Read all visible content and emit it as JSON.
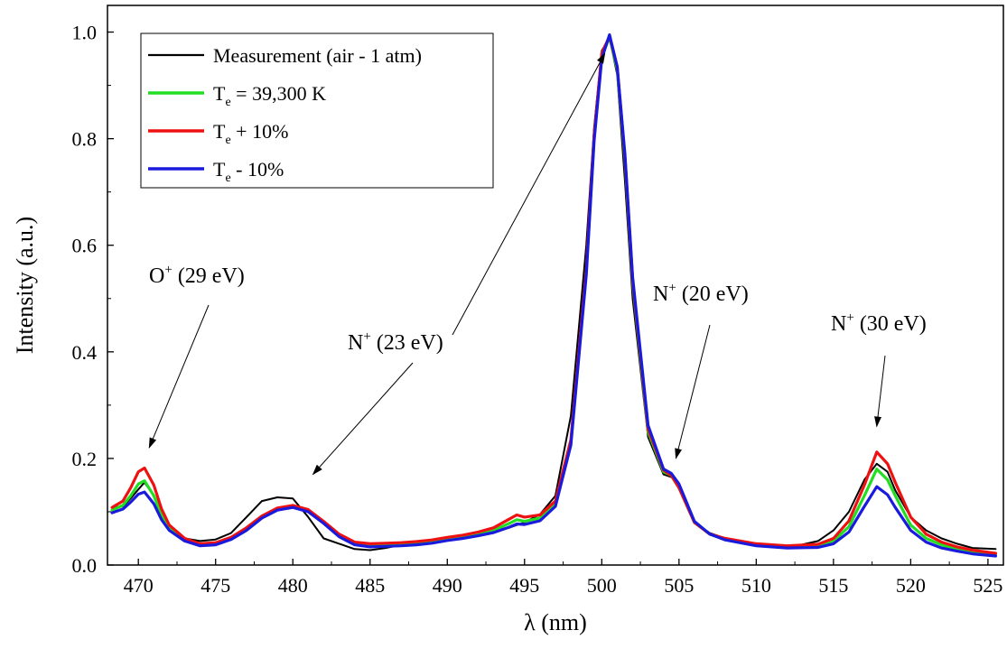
{
  "chart_data": {
    "type": "line",
    "xlabel": "λ (nm)",
    "ylabel": "Intensity (a.u.)",
    "xlim": [
      468,
      526
    ],
    "ylim": [
      0,
      1.05
    ],
    "x_ticks": [
      470,
      475,
      480,
      485,
      490,
      495,
      500,
      505,
      510,
      515,
      520,
      525
    ],
    "y_ticks": [
      0.0,
      0.2,
      0.4,
      0.6,
      0.8,
      1.0
    ],
    "x_tick_labels": [
      "470",
      "475",
      "480",
      "485",
      "490",
      "495",
      "500",
      "505",
      "510",
      "515",
      "520",
      "525"
    ],
    "y_tick_labels": [
      "0.0",
      "0.2",
      "0.4",
      "0.6",
      "0.8",
      "1.0"
    ],
    "grid": false,
    "legend_position": "top-left",
    "x": [
      468.3,
      469.0,
      469.5,
      470.0,
      470.4,
      471.0,
      471.5,
      472.0,
      473.0,
      474.0,
      475.0,
      476.0,
      477.0,
      478.0,
      479.0,
      480.0,
      481.0,
      482.0,
      483.0,
      484.0,
      485.0,
      486.0,
      487.0,
      488.0,
      489.0,
      490.0,
      491.0,
      492.0,
      493.0,
      494.0,
      494.5,
      495.0,
      496.0,
      497.0,
      498.0,
      499.0,
      499.5,
      500.0,
      500.5,
      501.0,
      501.5,
      502.0,
      503.0,
      504.0,
      504.5,
      505.0,
      506.0,
      507.0,
      508.0,
      510.0,
      512.0,
      514.0,
      515.0,
      516.0,
      517.0,
      517.8,
      518.5,
      519.0,
      520.0,
      521.0,
      522.0,
      523.0,
      524.0,
      525.5
    ],
    "series": [
      {
        "name": "Measurement (air - 1 atm)",
        "color": "#000000",
        "values": [
          0.108,
          0.11,
          0.125,
          0.142,
          0.155,
          0.13,
          0.09,
          0.07,
          0.05,
          0.045,
          0.048,
          0.06,
          0.09,
          0.12,
          0.127,
          0.125,
          0.09,
          0.05,
          0.04,
          0.03,
          0.028,
          0.032,
          0.038,
          0.04,
          0.045,
          0.05,
          0.055,
          0.058,
          0.065,
          0.07,
          0.075,
          0.08,
          0.095,
          0.13,
          0.28,
          0.6,
          0.82,
          0.965,
          0.99,
          0.92,
          0.72,
          0.5,
          0.24,
          0.17,
          0.165,
          0.15,
          0.08,
          0.06,
          0.05,
          0.038,
          0.032,
          0.045,
          0.065,
          0.1,
          0.16,
          0.19,
          0.175,
          0.14,
          0.09,
          0.065,
          0.05,
          0.04,
          0.032,
          0.03
        ]
      },
      {
        "name": "Te = 39,300 K",
        "color": "#22dd22",
        "values": [
          0.103,
          0.112,
          0.13,
          0.152,
          0.158,
          0.13,
          0.095,
          0.07,
          0.048,
          0.038,
          0.04,
          0.05,
          0.068,
          0.09,
          0.105,
          0.11,
          0.102,
          0.08,
          0.055,
          0.04,
          0.036,
          0.037,
          0.038,
          0.04,
          0.043,
          0.048,
          0.052,
          0.058,
          0.065,
          0.078,
          0.085,
          0.082,
          0.088,
          0.115,
          0.23,
          0.55,
          0.8,
          0.955,
          0.99,
          0.93,
          0.76,
          0.53,
          0.25,
          0.175,
          0.168,
          0.145,
          0.08,
          0.058,
          0.048,
          0.038,
          0.034,
          0.036,
          0.045,
          0.072,
          0.13,
          0.18,
          0.16,
          0.13,
          0.075,
          0.05,
          0.038,
          0.03,
          0.025,
          0.02
        ]
      },
      {
        "name": "Te + 10%",
        "color": "#ee1111",
        "values": [
          0.108,
          0.12,
          0.145,
          0.175,
          0.182,
          0.15,
          0.105,
          0.075,
          0.05,
          0.04,
          0.042,
          0.052,
          0.07,
          0.092,
          0.107,
          0.112,
          0.104,
          0.082,
          0.058,
          0.043,
          0.04,
          0.041,
          0.042,
          0.044,
          0.047,
          0.052,
          0.056,
          0.062,
          0.07,
          0.086,
          0.094,
          0.09,
          0.094,
          0.12,
          0.235,
          0.555,
          0.805,
          0.96,
          0.992,
          0.935,
          0.765,
          0.535,
          0.255,
          0.178,
          0.168,
          0.145,
          0.08,
          0.058,
          0.05,
          0.04,
          0.036,
          0.039,
          0.05,
          0.083,
          0.15,
          0.212,
          0.19,
          0.155,
          0.09,
          0.058,
          0.043,
          0.034,
          0.028,
          0.022
        ]
      },
      {
        "name": "Te - 10%",
        "color": "#1a1add",
        "values": [
          0.098,
          0.105,
          0.118,
          0.133,
          0.137,
          0.115,
          0.085,
          0.065,
          0.045,
          0.036,
          0.038,
          0.048,
          0.065,
          0.088,
          0.103,
          0.108,
          0.1,
          0.078,
          0.053,
          0.038,
          0.034,
          0.035,
          0.036,
          0.038,
          0.041,
          0.046,
          0.05,
          0.055,
          0.061,
          0.071,
          0.077,
          0.076,
          0.083,
          0.11,
          0.225,
          0.545,
          0.795,
          0.95,
          0.995,
          0.935,
          0.77,
          0.54,
          0.262,
          0.18,
          0.172,
          0.152,
          0.082,
          0.058,
          0.047,
          0.036,
          0.032,
          0.033,
          0.04,
          0.062,
          0.11,
          0.147,
          0.132,
          0.108,
          0.065,
          0.043,
          0.032,
          0.026,
          0.021,
          0.017
        ]
      }
    ],
    "legend": [
      {
        "main": "Measurement (air - 1 atm)",
        "sub": "",
        "rest": "",
        "color": "#000000"
      },
      {
        "main": "T",
        "sub": "e",
        "rest": " = 39,300 K",
        "color": "#22dd22"
      },
      {
        "main": "T",
        "sub": "e",
        "rest": " + 10%",
        "color": "#ee1111"
      },
      {
        "main": "T",
        "sub": "e",
        "rest": " - 10%",
        "color": "#1a1add"
      }
    ],
    "annotations": [
      {
        "species": "O",
        "charge": "+",
        "energy": " (29 eV)",
        "target": [
          470.7,
          0.22
        ]
      },
      {
        "species": "N",
        "charge": "+",
        "energy": " (23 eV)",
        "target": [
          481.3,
          0.17
        ]
      },
      {
        "species": "N",
        "charge": "+",
        "energy": " (20 eV)",
        "target": [
          504.8,
          0.2
        ]
      },
      {
        "species": "N",
        "charge": "+",
        "energy": " (30 eV)",
        "target": [
          517.8,
          0.26
        ]
      }
    ],
    "extra_arrow": {
      "target": [
        500.2,
        0.96
      ]
    }
  }
}
